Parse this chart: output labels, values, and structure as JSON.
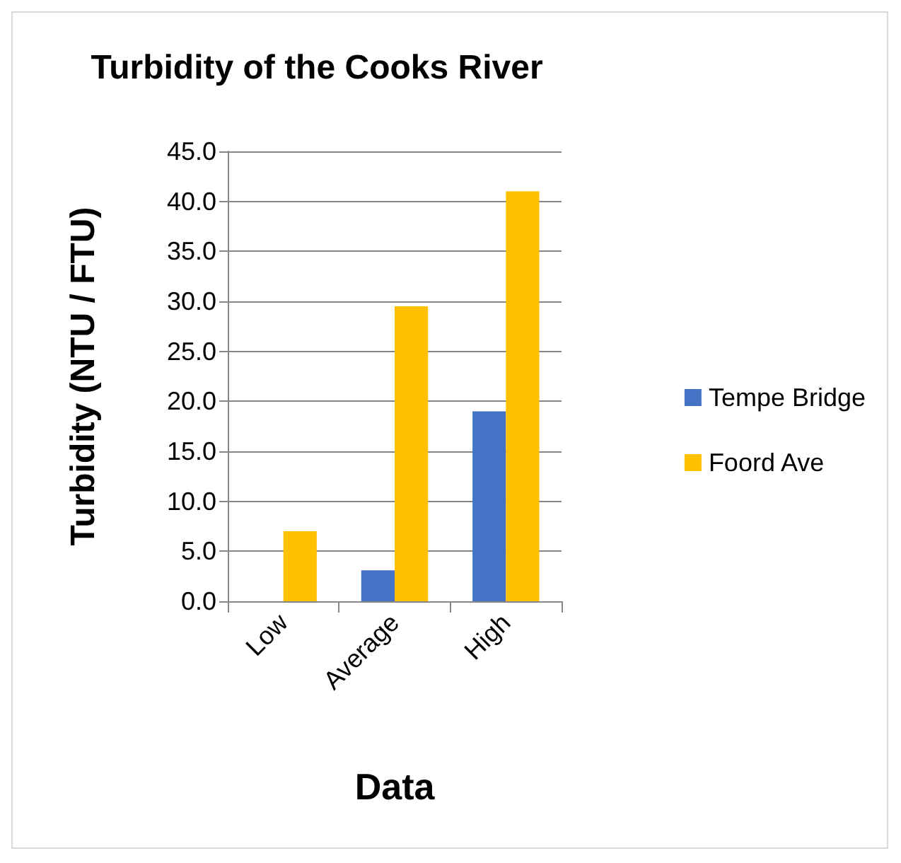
{
  "chart_data": {
    "type": "bar",
    "title": "Turbidity of the Cooks River",
    "xlabel": "Data",
    "ylabel": "Turbidity (NTU / FTU)",
    "categories": [
      "Low",
      "Average",
      "High"
    ],
    "series": [
      {
        "name": "Tempe Bridge",
        "color": "#4472c4",
        "values": [
          0,
          3.1,
          19.0
        ]
      },
      {
        "name": "Foord Ave",
        "color": "#ffc000",
        "values": [
          7.0,
          29.5,
          41.0
        ]
      }
    ],
    "ylim": [
      0,
      45
    ],
    "yticks": [
      {
        "value": 0,
        "label": "0.0"
      },
      {
        "value": 5,
        "label": "5.0"
      },
      {
        "value": 10,
        "label": "10.0"
      },
      {
        "value": 15,
        "label": "15.0"
      },
      {
        "value": 20,
        "label": "20.0"
      },
      {
        "value": 25,
        "label": "25.0"
      },
      {
        "value": 30,
        "label": "30.0"
      },
      {
        "value": 35,
        "label": "35.0"
      },
      {
        "value": 40,
        "label": "40.0"
      },
      {
        "value": 45,
        "label": "45.0"
      }
    ],
    "grid": "y",
    "legend": "right"
  }
}
